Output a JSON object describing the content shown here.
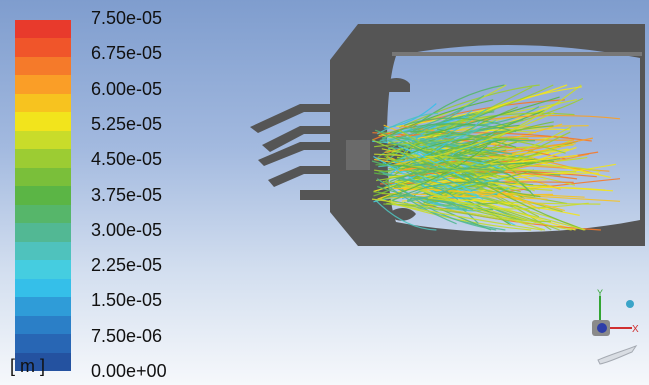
{
  "legend": {
    "units_label": "[ m ]",
    "tick_labels": [
      "7.50e-05",
      "6.75e-05",
      "6.00e-05",
      "5.25e-05",
      "4.50e-05",
      "3.75e-05",
      "3.00e-05",
      "2.25e-05",
      "1.50e-05",
      "7.50e-06",
      "0.00e+00"
    ],
    "band_colors": [
      "#e83a2c",
      "#f0552a",
      "#f57a2a",
      "#fa9e27",
      "#f7c31f",
      "#f2e41c",
      "#c9dc2a",
      "#9ccc33",
      "#7abf3a",
      "#5bb545",
      "#56b66a",
      "#52b894",
      "#4fc2bd",
      "#45cde0",
      "#35bfe9",
      "#2f9cd8",
      "#2b7fc7",
      "#2866b4",
      "#2452a0"
    ]
  },
  "axis_triad": {
    "y_label": "Y",
    "x_label": "X"
  },
  "colors": {
    "geometry": "#555555",
    "background_top": "#7f9dce",
    "background_bottom": "#f6f8fb"
  }
}
